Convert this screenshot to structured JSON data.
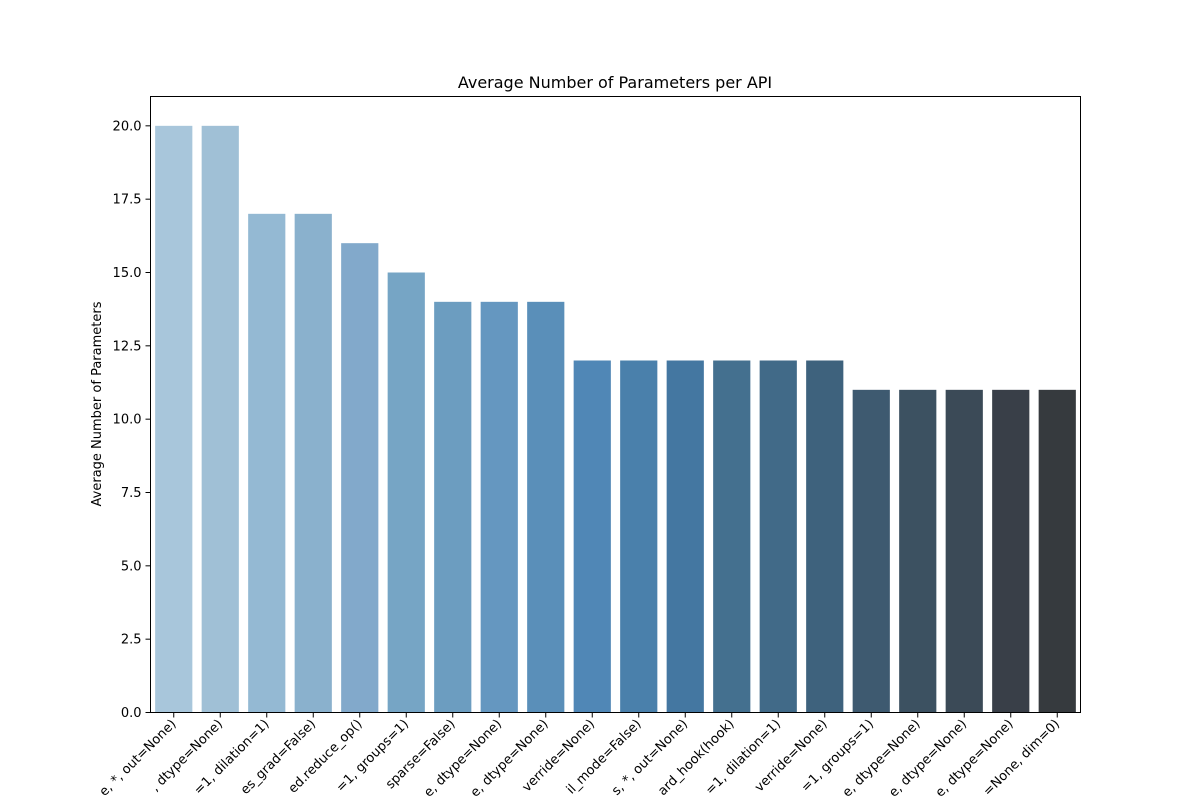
{
  "chart_data": {
    "type": "bar",
    "title": "Average Number of Parameters per API",
    "xlabel": "",
    "ylabel": "Average Number of Parameters",
    "ylim": [
      0,
      21
    ],
    "yticks": [
      0.0,
      2.5,
      5.0,
      7.5,
      10.0,
      12.5,
      15.0,
      17.5,
      20.0
    ],
    "ytick_labels": [
      "0.0",
      "2.5",
      "5.0",
      "7.5",
      "10.0",
      "12.5",
      "15.0",
      "17.5",
      "20.0"
    ],
    "grid": false,
    "categories": [
      "e, *, out=None)",
      ", dtype=None)",
      "=1, dilation=1)",
      "es_grad=False)",
      "ed.reduce_op()",
      "=1, groups=1)",
      "sparse=False)",
      "e, dtype=None)",
      "e, dtype=None)",
      "verride=None)",
      "il_mode=False)",
      "s, *, out=None)",
      "ard_hook(hook)",
      "=1, dilation=1)",
      "verride=None)",
      "=1, groups=1)",
      "e, dtype=None)",
      "e, dtype=None)",
      "e, dtype=None)",
      "=None, dim=0)"
    ],
    "values": [
      20,
      20,
      17,
      17,
      16,
      15,
      14,
      14,
      14,
      12,
      12,
      12,
      12,
      12,
      12,
      11,
      11,
      11,
      11,
      11
    ],
    "colors": [
      "#a8c6db",
      "#a0c0d6",
      "#94b9d3",
      "#8ab1cd",
      "#82a9cb",
      "#76a5c5",
      "#6c9dc0",
      "#6597c0",
      "#5a8fb9",
      "#5087b6",
      "#4a80ab",
      "#4477a1",
      "#44708f",
      "#416a88",
      "#3e627d",
      "#3e5a70",
      "#3c5161",
      "#3b4a57",
      "#393f48",
      "#363a3e"
    ]
  }
}
